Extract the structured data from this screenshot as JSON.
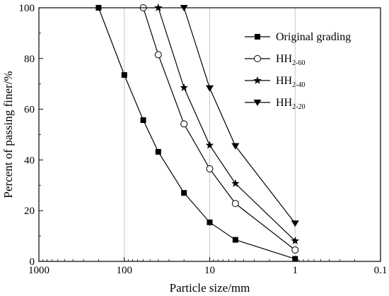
{
  "chart_data": {
    "type": "line",
    "xscale": "log",
    "xreversed": true,
    "xlim": [
      1000,
      0.1
    ],
    "ylim": [
      0,
      100
    ],
    "xticks": [
      1000,
      100,
      10,
      1,
      0.1
    ],
    "xtick_labels": [
      "1000",
      "100",
      "10",
      "1",
      "0.1"
    ],
    "yticks": [
      0,
      20,
      40,
      60,
      80,
      100
    ],
    "ytick_labels": [
      "0",
      "20",
      "40",
      "60",
      "80",
      "100"
    ],
    "xlabel": "Particle size/mm",
    "ylabel": "Percent of passing finer/%",
    "grid": "vertical",
    "legend_position": "top-right",
    "series": [
      {
        "name": "Original grading",
        "marker": "square-filled",
        "x": [
          200,
          100,
          60,
          40,
          20,
          10,
          5,
          1
        ],
        "y": [
          100,
          73.5,
          55.7,
          43.2,
          27,
          15.4,
          8.5,
          1
        ]
      },
      {
        "name": "HH",
        "name_sub": "2-60",
        "marker": "circle-open",
        "x": [
          60,
          40,
          20,
          10,
          5,
          1
        ],
        "y": [
          100,
          81.5,
          54.2,
          36.5,
          22.8,
          4.5
        ]
      },
      {
        "name": "HH",
        "name_sub": "2-40",
        "marker": "star-filled",
        "x": [
          40,
          20,
          10,
          5,
          1
        ],
        "y": [
          100,
          68.5,
          45.8,
          30.7,
          8.1
        ]
      },
      {
        "name": "HH",
        "name_sub": "2-20",
        "marker": "triangle-down-filled",
        "x": [
          20,
          10,
          5,
          1
        ],
        "y": [
          100,
          68.3,
          45.5,
          15
        ]
      }
    ]
  }
}
